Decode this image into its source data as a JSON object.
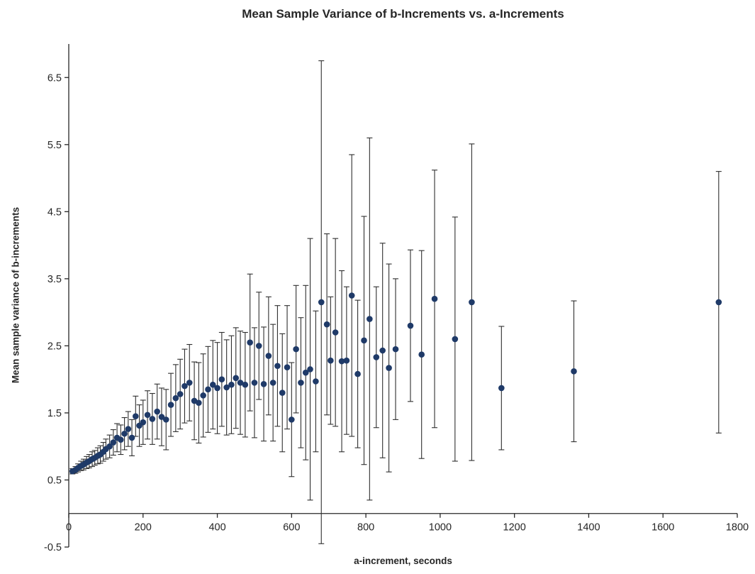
{
  "chart_data": {
    "type": "scatter",
    "title": "Mean Sample Variance of b-Increments vs. a-Increments",
    "xlabel": "a-increment, seconds",
    "ylabel": "Mean sample variance of b-increments",
    "xlim": [
      0,
      1800
    ],
    "ylim": [
      -0.5,
      7.0
    ],
    "x_ticks": [
      0,
      200,
      400,
      600,
      800,
      1000,
      1200,
      1400,
      1600,
      1800
    ],
    "y_ticks": [
      -0.5,
      0.5,
      1.5,
      2.5,
      3.5,
      4.5,
      5.5,
      6.5
    ],
    "x_axis_cross": 0,
    "grid": false,
    "legend": "none",
    "marker_color": "#1f3a68",
    "error_bar_color": "#2f2f2f",
    "axis_color": "#262626",
    "points_format": "[x, y, symmetric_error]",
    "points": [
      [
        10,
        0.63,
        0.04
      ],
      [
        18,
        0.65,
        0.05
      ],
      [
        25,
        0.68,
        0.06
      ],
      [
        33,
        0.71,
        0.07
      ],
      [
        40,
        0.73,
        0.08
      ],
      [
        48,
        0.76,
        0.09
      ],
      [
        55,
        0.78,
        0.1
      ],
      [
        63,
        0.81,
        0.11
      ],
      [
        70,
        0.83,
        0.11
      ],
      [
        78,
        0.86,
        0.12
      ],
      [
        85,
        0.88,
        0.13
      ],
      [
        93,
        0.92,
        0.14
      ],
      [
        100,
        0.96,
        0.15
      ],
      [
        110,
        1.0,
        0.17
      ],
      [
        120,
        1.06,
        0.19
      ],
      [
        130,
        1.13,
        0.21
      ],
      [
        140,
        1.1,
        0.22
      ],
      [
        150,
        1.19,
        0.24
      ],
      [
        160,
        1.26,
        0.26
      ],
      [
        170,
        1.13,
        0.27
      ],
      [
        180,
        1.45,
        0.3
      ],
      [
        190,
        1.31,
        0.31
      ],
      [
        200,
        1.36,
        0.33
      ],
      [
        212,
        1.47,
        0.36
      ],
      [
        225,
        1.41,
        0.38
      ],
      [
        238,
        1.52,
        0.41
      ],
      [
        250,
        1.44,
        0.43
      ],
      [
        262,
        1.4,
        0.45
      ],
      [
        275,
        1.62,
        0.47
      ],
      [
        288,
        1.72,
        0.5
      ],
      [
        300,
        1.78,
        0.52
      ],
      [
        312,
        1.9,
        0.55
      ],
      [
        325,
        1.95,
        0.57
      ],
      [
        338,
        1.68,
        0.58
      ],
      [
        350,
        1.65,
        0.6
      ],
      [
        362,
        1.76,
        0.62
      ],
      [
        375,
        1.85,
        0.64
      ],
      [
        388,
        1.92,
        0.66
      ],
      [
        400,
        1.87,
        0.68
      ],
      [
        412,
        2.0,
        0.7
      ],
      [
        425,
        1.88,
        0.71
      ],
      [
        438,
        1.92,
        0.73
      ],
      [
        450,
        2.02,
        0.75
      ],
      [
        462,
        1.95,
        0.77
      ],
      [
        475,
        1.92,
        0.78
      ],
      [
        488,
        2.55,
        1.02
      ],
      [
        500,
        1.95,
        0.82
      ],
      [
        512,
        2.5,
        0.8
      ],
      [
        525,
        1.93,
        0.85
      ],
      [
        538,
        2.35,
        0.88
      ],
      [
        550,
        1.95,
        0.87
      ],
      [
        562,
        2.2,
        0.9
      ],
      [
        575,
        1.8,
        0.88
      ],
      [
        588,
        2.18,
        0.92
      ],
      [
        600,
        1.4,
        0.85
      ],
      [
        612,
        2.45,
        0.95
      ],
      [
        625,
        1.95,
        0.97
      ],
      [
        638,
        2.1,
        1.3
      ],
      [
        650,
        2.15,
        1.95
      ],
      [
        665,
        1.97,
        1.05
      ],
      [
        680,
        3.15,
        3.6
      ],
      [
        695,
        2.82,
        1.35
      ],
      [
        705,
        2.28,
        0.95
      ],
      [
        718,
        2.7,
        1.4
      ],
      [
        735,
        2.27,
        1.35
      ],
      [
        748,
        2.28,
        1.1
      ],
      [
        762,
        3.25,
        2.1
      ],
      [
        778,
        2.08,
        1.1
      ],
      [
        795,
        2.58,
        1.85
      ],
      [
        810,
        2.9,
        2.7
      ],
      [
        828,
        2.33,
        1.05
      ],
      [
        845,
        2.43,
        1.6
      ],
      [
        862,
        2.17,
        1.55
      ],
      [
        880,
        2.45,
        1.05
      ],
      [
        920,
        2.8,
        1.13
      ],
      [
        950,
        2.37,
        1.55
      ],
      [
        985,
        3.2,
        1.92
      ],
      [
        1040,
        2.6,
        1.82
      ],
      [
        1085,
        3.15,
        2.36
      ],
      [
        1165,
        1.87,
        0.92
      ],
      [
        1360,
        2.12,
        1.05
      ],
      [
        1750,
        3.15,
        1.95
      ]
    ]
  }
}
